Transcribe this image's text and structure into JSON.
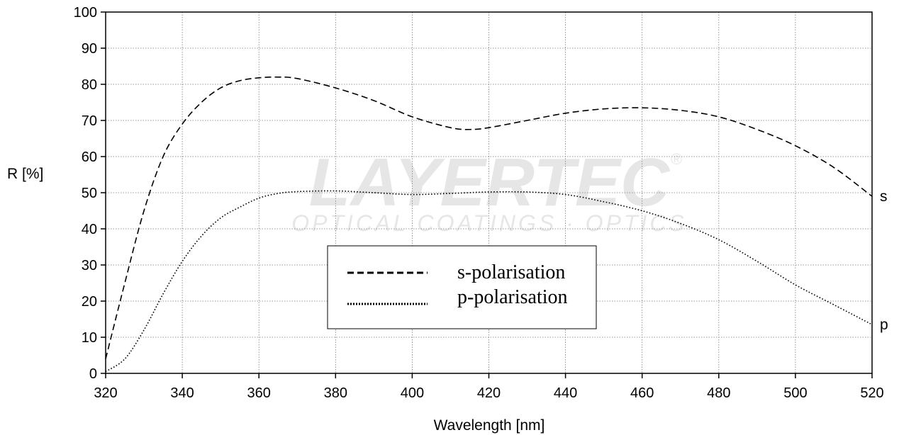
{
  "chart_data": {
    "type": "line",
    "xlabel": "Wavelength [nm]",
    "ylabel": "R [%]",
    "xlim": [
      320,
      520
    ],
    "ylim": [
      0,
      100
    ],
    "x_ticks": [
      320,
      340,
      360,
      380,
      400,
      420,
      440,
      460,
      480,
      500,
      520
    ],
    "y_ticks": [
      0,
      10,
      20,
      30,
      40,
      50,
      60,
      70,
      80,
      90,
      100
    ],
    "grid": true,
    "legend_position": "center-bottom",
    "watermark": {
      "brand": "LAYERTEC",
      "tagline": "OPTICAL COATINGS · OPTICS",
      "registered": "®"
    },
    "series": [
      {
        "name": "s-polarisation",
        "end_label": "s",
        "style": "dashed",
        "x": [
          320,
          325,
          330,
          335,
          340,
          345,
          350,
          355,
          360,
          365,
          370,
          380,
          390,
          400,
          410,
          415,
          420,
          430,
          440,
          450,
          460,
          470,
          480,
          490,
          500,
          510,
          520
        ],
        "y": [
          4,
          25,
          45,
          60,
          69,
          75,
          79,
          81,
          81.8,
          82,
          81.6,
          79,
          75.5,
          71,
          68,
          67.5,
          68,
          70,
          72,
          73.2,
          73.5,
          72.8,
          71,
          67.5,
          63,
          57,
          49
        ]
      },
      {
        "name": "p-polarisation",
        "end_label": "p",
        "style": "dotted",
        "x": [
          320,
          325,
          330,
          335,
          340,
          345,
          350,
          355,
          360,
          365,
          370,
          380,
          390,
          400,
          410,
          420,
          430,
          440,
          450,
          460,
          470,
          480,
          490,
          500,
          510,
          520
        ],
        "y": [
          0.5,
          4,
          12,
          22,
          31,
          38,
          43,
          46,
          48.5,
          49.8,
          50.3,
          50.5,
          50,
          49.5,
          49.8,
          50.2,
          50.2,
          49.5,
          47.5,
          45,
          41.5,
          37,
          31,
          24.5,
          19,
          13.5
        ]
      }
    ]
  }
}
